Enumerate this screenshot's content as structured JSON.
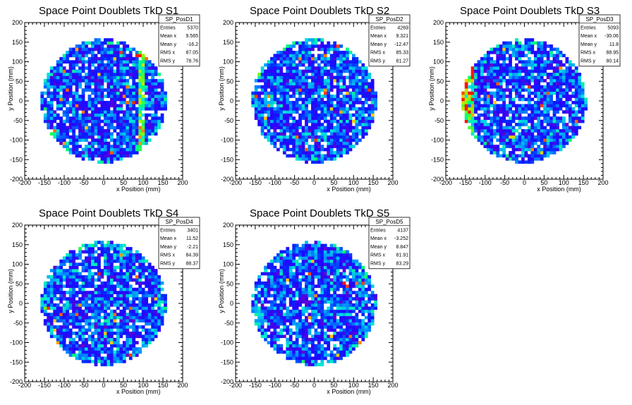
{
  "chart_data": [
    {
      "type": "heatmap",
      "title": "Space Point Doublets TkD S1",
      "xlabel": "x Position (mm)",
      "ylabel": "y Position (mm)",
      "xlim": [
        -200,
        200
      ],
      "ylim": [
        -200,
        200
      ],
      "xticks": [
        "-200",
        "-150",
        "-100",
        "-50",
        "0",
        "50",
        "100",
        "150",
        "200"
      ],
      "yticks": [
        "-200",
        "-150",
        "-100",
        "-50",
        "0",
        "50",
        "100",
        "150",
        "200"
      ],
      "region": {
        "shape": "disk",
        "radius": 160,
        "bin_size": 8
      },
      "features": {
        "vertical_band_x": 95
      },
      "stats": {
        "name": "SP_PosD1",
        "rows": [
          {
            "label": "Entries",
            "value": "5370"
          },
          {
            "label": "Mean x",
            "value": "9.565"
          },
          {
            "label": "Mean y",
            "value": "-16.2"
          },
          {
            "label": "RMS x",
            "value": "87.05"
          },
          {
            "label": "RMS y",
            "value": "78.76"
          }
        ]
      }
    },
    {
      "type": "heatmap",
      "title": "Space Point Doublets TkD S2",
      "xlabel": "x Position (mm)",
      "ylabel": "y Position (mm)",
      "xlim": [
        -200,
        200
      ],
      "ylim": [
        -200,
        200
      ],
      "xticks": [
        "-200",
        "-150",
        "-100",
        "-50",
        "0",
        "50",
        "100",
        "150",
        "200"
      ],
      "yticks": [
        "-200",
        "-150",
        "-100",
        "-50",
        "0",
        "50",
        "100",
        "150",
        "200"
      ],
      "region": {
        "shape": "disk",
        "radius": 160,
        "bin_size": 8
      },
      "features": {},
      "stats": {
        "name": "SP_PosD2",
        "rows": [
          {
            "label": "Entries",
            "value": "4269"
          },
          {
            "label": "Mean x",
            "value": "9.321"
          },
          {
            "label": "Mean y",
            "value": "-12.47"
          },
          {
            "label": "RMS x",
            "value": "85.33"
          },
          {
            "label": "RMS y",
            "value": "81.27"
          }
        ]
      }
    },
    {
      "type": "heatmap",
      "title": "Space Point Doublets TkD S3",
      "xlabel": "x Position (mm)",
      "ylabel": "y Position (mm)",
      "xlim": [
        -200,
        200
      ],
      "ylim": [
        -200,
        200
      ],
      "xticks": [
        "-200",
        "-150",
        "-100",
        "-50",
        "0",
        "50",
        "100",
        "150",
        "200"
      ],
      "yticks": [
        "-200",
        "-150",
        "-100",
        "-50",
        "0",
        "50",
        "100",
        "150",
        "200"
      ],
      "region": {
        "shape": "disk",
        "radius": 160,
        "bin_size": 8
      },
      "features": {
        "hot_edge_x": -145
      },
      "stats": {
        "name": "SP_PosD3",
        "rows": [
          {
            "label": "Entries",
            "value": "5093"
          },
          {
            "label": "Mean x",
            "value": "-30.06"
          },
          {
            "label": "Mean y",
            "value": "11.8"
          },
          {
            "label": "RMS x",
            "value": "88.95"
          },
          {
            "label": "RMS y",
            "value": "80.14"
          }
        ]
      }
    },
    {
      "type": "heatmap",
      "title": "Space Point Doublets TkD S4",
      "xlabel": "x Position (mm)",
      "ylabel": "y Position (mm)",
      "xlim": [
        -200,
        200
      ],
      "ylim": [
        -200,
        200
      ],
      "xticks": [
        "-200",
        "-150",
        "-100",
        "-50",
        "0",
        "50",
        "100",
        "150",
        "200"
      ],
      "yticks": [
        "-200",
        "-150",
        "-100",
        "-50",
        "0",
        "50",
        "100",
        "150",
        "200"
      ],
      "region": {
        "shape": "disk",
        "radius": 160,
        "bin_size": 8
      },
      "features": {},
      "stats": {
        "name": "SP_PosD4",
        "rows": [
          {
            "label": "Entries",
            "value": "3401"
          },
          {
            "label": "Mean x",
            "value": "11.52"
          },
          {
            "label": "Mean y",
            "value": "-2.21"
          },
          {
            "label": "RMS x",
            "value": "84.39"
          },
          {
            "label": "RMS y",
            "value": "88.37"
          }
        ]
      }
    },
    {
      "type": "heatmap",
      "title": "Space Point Doublets TkD S5",
      "xlabel": "x Position (mm)",
      "ylabel": "y Position (mm)",
      "xlim": [
        -200,
        200
      ],
      "ylim": [
        -200,
        200
      ],
      "xticks": [
        "-200",
        "-150",
        "-100",
        "-50",
        "0",
        "50",
        "100",
        "150",
        "200"
      ],
      "yticks": [
        "-200",
        "-150",
        "-100",
        "-50",
        "0",
        "50",
        "100",
        "150",
        "200"
      ],
      "region": {
        "shape": "disk",
        "radius": 160,
        "bin_size": 8
      },
      "features": {},
      "stats": {
        "name": "SP_PosD5",
        "rows": [
          {
            "label": "Entries",
            "value": "4137"
          },
          {
            "label": "Mean x",
            "value": "-3.252"
          },
          {
            "label": "Mean y",
            "value": "8.847"
          },
          {
            "label": "RMS x",
            "value": "81.91"
          },
          {
            "label": "RMS y",
            "value": "83.29"
          }
        ]
      }
    }
  ]
}
